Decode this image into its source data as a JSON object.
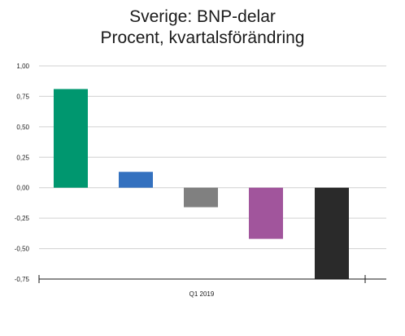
{
  "chart_data": {
    "type": "bar",
    "title": "Sverige: BNP-delar",
    "subtitle": "Procent, kvartalsförändring",
    "categories": [
      "Q1 2019"
    ],
    "series": [
      {
        "values": [
          0.81
        ],
        "color": "#00976f"
      },
      {
        "values": [
          0.13
        ],
        "color": "#3471bf"
      },
      {
        "values": [
          -0.16
        ],
        "color": "#808080"
      },
      {
        "values": [
          -0.42
        ],
        "color": "#a1559c"
      },
      {
        "values": [
          -0.75
        ],
        "color": "#2a2a2a"
      }
    ],
    "ylim": [
      -0.75,
      1.0
    ],
    "yticks": [
      "1,00",
      "0,75",
      "0,50",
      "0,25",
      "0,00",
      "-0,25",
      "-0,50",
      "-0,75"
    ],
    "ytick_values": [
      1.0,
      0.75,
      0.5,
      0.25,
      0.0,
      -0.25,
      -0.5,
      -0.75
    ],
    "grid": true,
    "legend": "none",
    "xlabel": "",
    "ylabel": ""
  }
}
